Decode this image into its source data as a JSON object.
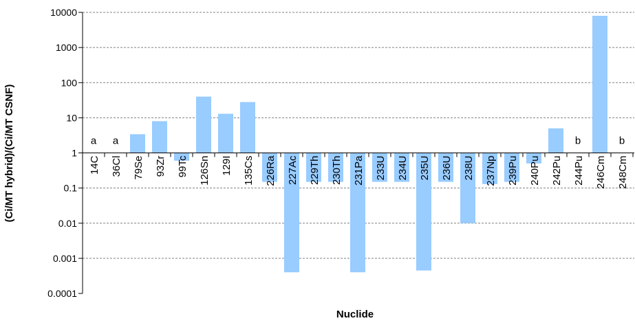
{
  "chart_data": {
    "type": "bar",
    "title": "",
    "xlabel": "Nuclide",
    "ylabel": "(Ci/MT hybrid)/(Ci/MT CSNF)",
    "y_scale": "log",
    "ylim": [
      0.0001,
      10000
    ],
    "y_ticks": [
      "0.0001",
      "0.001",
      "0.01",
      "0.1",
      "1",
      "10",
      "100",
      "1000",
      "10000"
    ],
    "grid": "horizontal dashed",
    "baseline": 1,
    "categories": [
      "14C",
      "36Cl",
      "79Se",
      "93Zr",
      "99Tc",
      "126Sn",
      "129I",
      "135Cs",
      "226Ra",
      "227Ac",
      "229Th",
      "230Th",
      "231Pa",
      "233U",
      "234U",
      "235U",
      "236U",
      "238U",
      "237Np",
      "239Pu",
      "240Pu",
      "242Pu",
      "244Pu",
      "246Cm",
      "248Cm"
    ],
    "values": [
      null,
      null,
      3.4,
      8,
      0.6,
      40,
      13,
      28,
      0.15,
      0.0004,
      0.15,
      0.15,
      0.0004,
      0.15,
      0.15,
      0.00045,
      0.15,
      0.01,
      0.13,
      0.15,
      0.5,
      5,
      null,
      8000,
      null
    ],
    "annotations": [
      "a",
      "a",
      "",
      "",
      "",
      "",
      "",
      "",
      "",
      "",
      "",
      "",
      "",
      "",
      "",
      "",
      "",
      "",
      "",
      "",
      "",
      "",
      "b",
      "",
      "b"
    ],
    "bar_color": "#99ccff",
    "grid_color": "#808080"
  }
}
